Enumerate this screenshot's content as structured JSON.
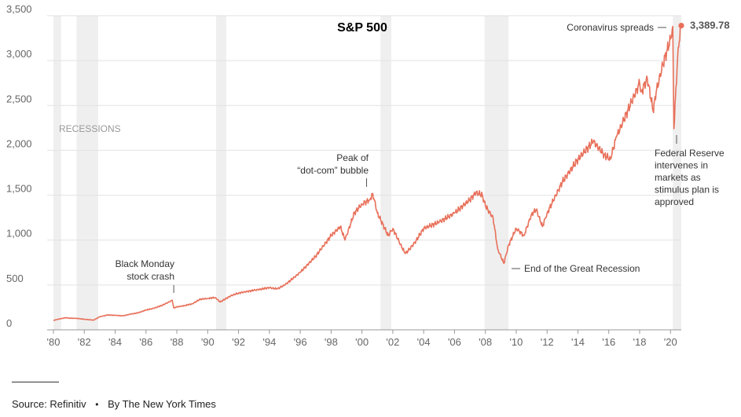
{
  "chart_data": {
    "type": "line",
    "title": "S&P 500",
    "xlabel": "",
    "ylabel": "",
    "xlim": [
      1980,
      2020.7
    ],
    "ylim": [
      0,
      3500
    ],
    "y_ticks": [
      0,
      500,
      1000,
      1500,
      2000,
      2500,
      3000,
      3500
    ],
    "y_tick_labels": [
      "0",
      "500",
      "1,000",
      "1,500",
      "2,000",
      "2,500",
      "3,000",
      "3,500"
    ],
    "x_ticks": [
      1980,
      1982,
      1984,
      1986,
      1988,
      1990,
      1992,
      1994,
      1996,
      1998,
      2000,
      2002,
      2004,
      2006,
      2008,
      2010,
      2012,
      2014,
      2016,
      2018,
      2020
    ],
    "x_tick_labels": [
      "'80",
      "'82",
      "'84",
      "'86",
      "'88",
      "'90",
      "'92",
      "'94",
      "'96",
      "'98",
      "'00",
      "'02",
      "'04",
      "'06",
      "'08",
      "'10",
      "'12",
      "'14",
      "'16",
      "'18",
      "'20"
    ],
    "grid": "horizontal",
    "recessions_label": "RECESSIONS",
    "recessions": [
      [
        1980.0,
        1980.5
      ],
      [
        1981.5,
        1982.9
      ],
      [
        1990.55,
        1991.2
      ],
      [
        2001.2,
        2001.9
      ],
      [
        2007.95,
        2009.5
      ],
      [
        2020.15,
        2020.7
      ]
    ],
    "series": [
      {
        "color": "#e8705a",
        "x": [
          1980.0,
          1980.3,
          1980.8,
          1981.0,
          1981.5,
          1982.0,
          1982.6,
          1983.0,
          1983.5,
          1984.0,
          1984.5,
          1985.0,
          1985.5,
          1986.0,
          1986.5,
          1987.0,
          1987.5,
          1987.7,
          1987.8,
          1988.0,
          1988.5,
          1989.0,
          1989.5,
          1990.0,
          1990.5,
          1990.8,
          1991.0,
          1991.5,
          1992.0,
          1993.0,
          1994.0,
          1994.5,
          1995.0,
          1996.0,
          1997.0,
          1998.0,
          1998.6,
          1998.9,
          1999.5,
          2000.0,
          2000.5,
          2000.7,
          2001.0,
          2001.7,
          2002.0,
          2002.5,
          2002.8,
          2003.0,
          2003.5,
          2004.0,
          2005.0,
          2006.0,
          2007.0,
          2007.4,
          2007.8,
          2008.0,
          2008.5,
          2008.8,
          2009.2,
          2009.5,
          2010.0,
          2010.5,
          2011.0,
          2011.3,
          2011.7,
          2012.0,
          2013.0,
          2014.0,
          2015.0,
          2015.7,
          2016.1,
          2016.5,
          2017.0,
          2018.0,
          2018.1,
          2018.5,
          2018.9,
          2019.0,
          2019.5,
          2020.0,
          2020.15,
          2020.22,
          2020.5,
          2020.7
        ],
        "values": [
          105,
          118,
          135,
          130,
          128,
          118,
          108,
          145,
          165,
          162,
          155,
          175,
          190,
          220,
          240,
          270,
          310,
          330,
          245,
          255,
          270,
          290,
          340,
          350,
          360,
          310,
          330,
          380,
          410,
          440,
          470,
          455,
          500,
          640,
          820,
          1050,
          1150,
          1000,
          1300,
          1400,
          1450,
          1520,
          1300,
          1050,
          1130,
          950,
          850,
          880,
          990,
          1130,
          1200,
          1300,
          1450,
          1530,
          1500,
          1380,
          1250,
          900,
          740,
          940,
          1130,
          1050,
          1290,
          1340,
          1150,
          1300,
          1650,
          1900,
          2100,
          1950,
          1900,
          2150,
          2350,
          2750,
          2650,
          2800,
          2420,
          2600,
          2950,
          3240,
          3380,
          2240,
          3150,
          3389.78
        ]
      }
    ],
    "annotations": [
      {
        "text": "Black Monday",
        "text2": "stock crash"
      },
      {
        "text": "Peak of",
        "text2": "“dot-com” bubble"
      },
      {
        "text": "End of the Great Recession"
      },
      {
        "text": "Coronavirus spreads"
      },
      {
        "lines": [
          "Federal Reserve",
          "intervenes in",
          "markets as",
          "stimulus plan is",
          "approved"
        ]
      }
    ],
    "end_value_label": "3,389.78"
  },
  "footer": {
    "source": "Source: Refinitiv",
    "separator": "•",
    "byline": "By The New York Times"
  }
}
